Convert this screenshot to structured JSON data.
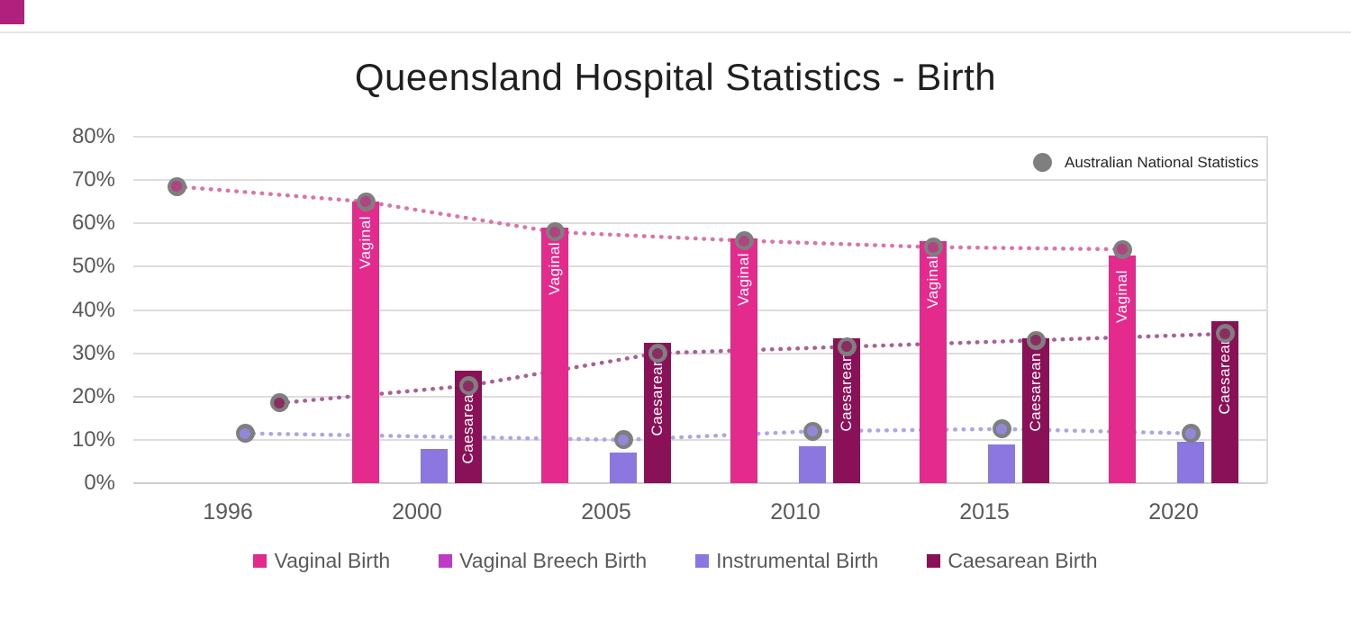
{
  "decor": {
    "corner_color": "#b0217e"
  },
  "chart_data": {
    "type": "bar",
    "subtype": "clustered-columns-with-dotted-scatter-trend-lines",
    "title": "Queensland Hospital Statistics - Birth",
    "x_axis": {
      "categories": [
        "1996",
        "2000",
        "2005",
        "2010",
        "2015",
        "2020"
      ]
    },
    "y_axis": {
      "min": 0,
      "max": 80,
      "step": 10,
      "tick_labels": [
        "0%",
        "10%",
        "20%",
        "30%",
        "40%",
        "50%",
        "60%",
        "70%",
        "80%"
      ]
    },
    "grid": true,
    "legend_position": "bottom",
    "bar_series": [
      {
        "name": "Vaginal Birth",
        "color": "#e52a8d",
        "bar_label": "Vaginal",
        "values": [
          null,
          65,
          59,
          56.5,
          56,
          52.5
        ]
      },
      {
        "name": "Vaginal Breech Birth",
        "color": "#be3bc8",
        "bar_label": "",
        "values": [
          null,
          0,
          0,
          0,
          0,
          0
        ]
      },
      {
        "name": "Instrumental Birth",
        "color": "#8b77df",
        "bar_label": "",
        "values": [
          null,
          8,
          7,
          8.5,
          9,
          9.5
        ]
      },
      {
        "name": "Caesarean Birth",
        "color": "#8a1157",
        "bar_label": "Caesarean",
        "values": [
          null,
          26,
          32.5,
          33.5,
          33.5,
          37.5
        ]
      }
    ],
    "scatter_series": [
      {
        "name": "Australian National Statistics - Vaginal",
        "aligns_with": "Vaginal Birth",
        "line_color": "#db74ad",
        "marker_fill": "#ae4480",
        "values": [
          68.5,
          65,
          58,
          56,
          54.5,
          54
        ]
      },
      {
        "name": "Australian National Statistics - Instrumental",
        "aligns_with": "Instrumental Birth",
        "line_color": "#aca5e9",
        "marker_fill": "#9288d9",
        "values": [
          11.5,
          null,
          10,
          12,
          12.5,
          11.5
        ]
      },
      {
        "name": "Australian National Statistics - Caesarean",
        "aligns_with": "Caesarean Birth",
        "line_color": "#ac5e97",
        "marker_fill": "#8a2d62",
        "values": [
          18.5,
          22.5,
          30,
          31.5,
          33,
          34.5
        ]
      }
    ],
    "scatter_legend": {
      "label": "Australian National Statistics",
      "marker_color": "#7f7f7f"
    }
  }
}
